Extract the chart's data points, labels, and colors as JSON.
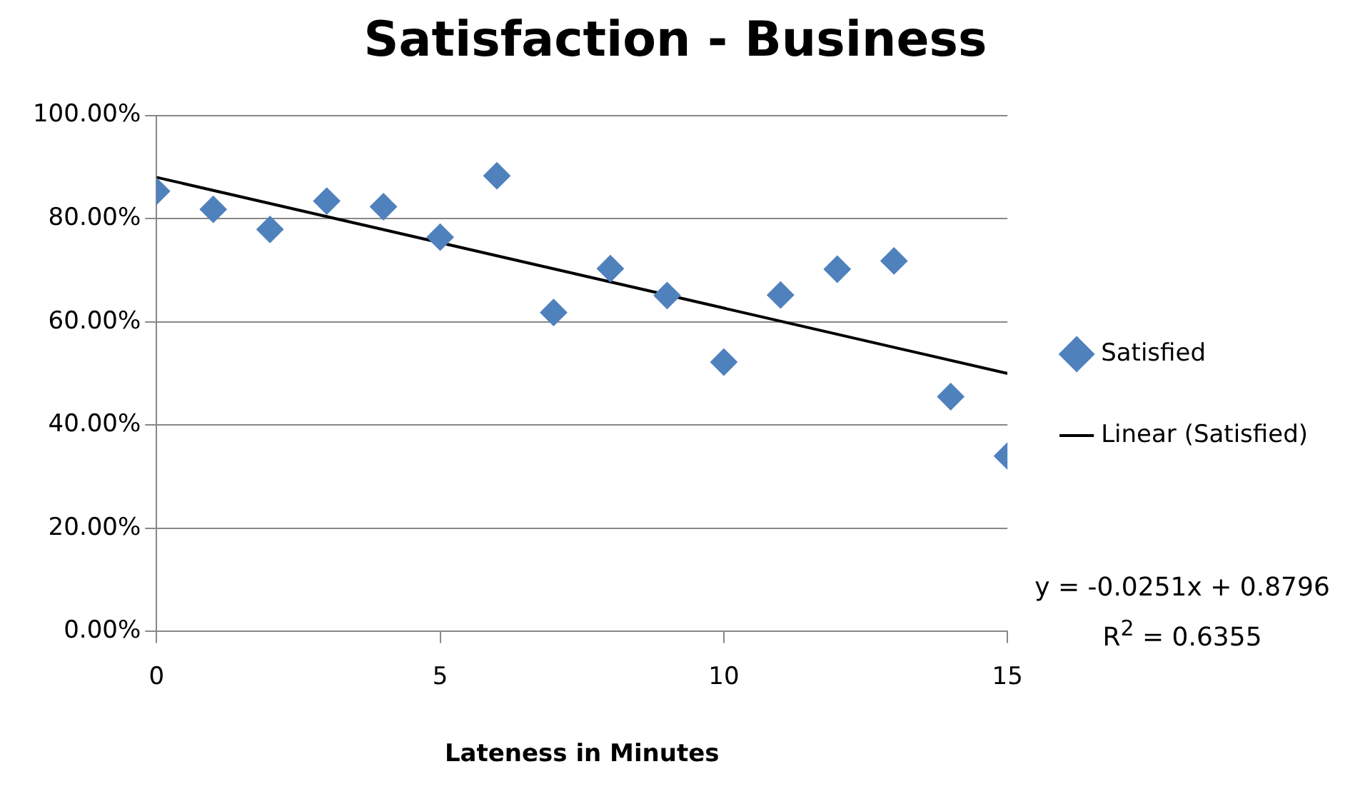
{
  "chart_data": {
    "type": "scatter",
    "title": "Satisfaction - Business",
    "xlabel": "Lateness in Minutes",
    "x": [
      0,
      1,
      2,
      3,
      4,
      5,
      6,
      7,
      8,
      9,
      10,
      11,
      12,
      13,
      14,
      15
    ],
    "series": [
      {
        "name": "Satisfied",
        "color": "#4f81bd",
        "marker": "diamond",
        "values": [
          0.853,
          0.818,
          0.779,
          0.834,
          0.823,
          0.764,
          0.883,
          0.618,
          0.703,
          0.651,
          0.522,
          0.652,
          0.702,
          0.718,
          0.455,
          0.34
        ]
      },
      {
        "name": "Linear (Satisfied)",
        "type": "line",
        "color": "#000000",
        "marker": "none",
        "x": [
          0,
          15
        ],
        "values": [
          0.88,
          0.5
        ]
      }
    ],
    "xlim": [
      0,
      15
    ],
    "xticks": [
      0,
      5,
      10,
      15
    ],
    "ylim": [
      0,
      1
    ],
    "yticks": [
      {
        "value": 0,
        "label": "0.00%"
      },
      {
        "value": 0.2,
        "label": "20.00%"
      },
      {
        "value": 0.4,
        "label": "40.00%"
      },
      {
        "value": 0.6,
        "label": "60.00%"
      },
      {
        "value": 0.8,
        "label": "80.00%"
      },
      {
        "value": 1,
        "label": "100.00%"
      }
    ],
    "grid": "y",
    "legend": "right",
    "annotations": [
      "y = -0.0251x + 0.8796",
      "R$^{2}$ = 0.6355"
    ]
  }
}
